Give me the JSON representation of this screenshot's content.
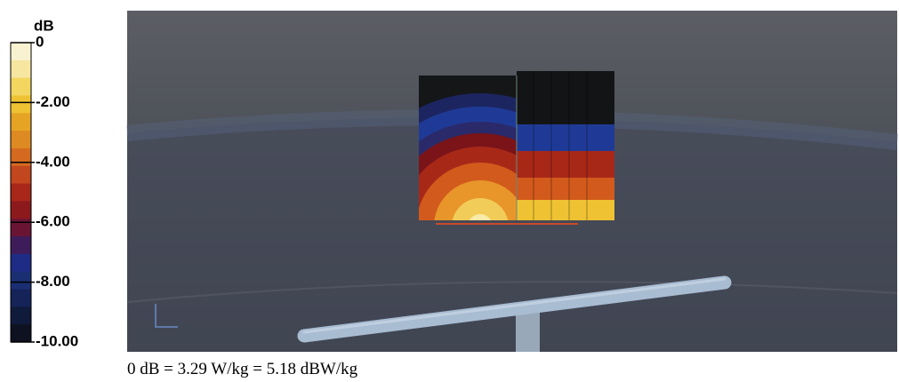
{
  "colorbar": {
    "unit": "dB",
    "range": [
      0,
      -10
    ],
    "ticks": [
      {
        "value": 0,
        "label": "0"
      },
      {
        "value": -2,
        "label": "-2.00"
      },
      {
        "value": -4,
        "label": "-4.00"
      },
      {
        "value": -6,
        "label": "-6.00"
      },
      {
        "value": -8,
        "label": "-8.00"
      },
      {
        "value": -10,
        "label": "-10.00"
      }
    ],
    "colors": [
      "#f8f2d0",
      "#f6e6a0",
      "#f2d660",
      "#eec232",
      "#e6a424",
      "#de8a22",
      "#d46a20",
      "#c2461e",
      "#a8261a",
      "#8c1a1c",
      "#6a1434",
      "#3e1c5a",
      "#1e2c86",
      "#1a2f72",
      "#142358",
      "#101a3a",
      "#0e1120"
    ]
  },
  "caption": "0 dB = 3.29 W/kg = 5.18 dBW/kg"
}
